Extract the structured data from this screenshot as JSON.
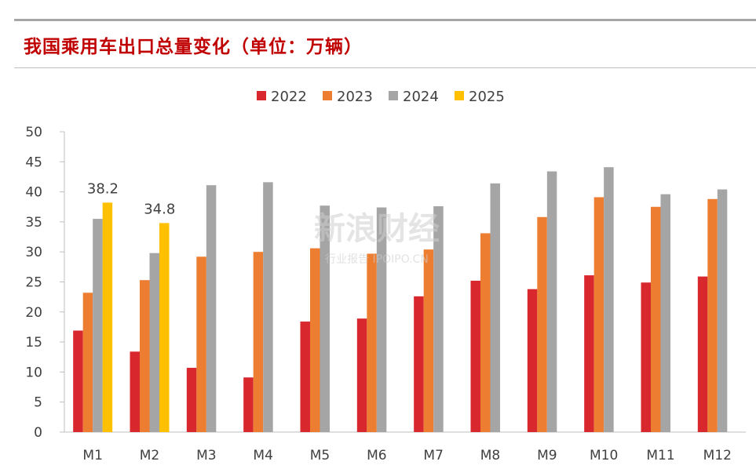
{
  "title": "我国乘用车出口总量变化（单位：万辆）",
  "watermark": {
    "main": "新浪财经",
    "sub": "行业报告 IPOIPO.CN"
  },
  "chart_data": {
    "type": "bar",
    "categories": [
      "M1",
      "M2",
      "M3",
      "M4",
      "M5",
      "M6",
      "M7",
      "M8",
      "M9",
      "M10",
      "M11",
      "M12"
    ],
    "series": [
      {
        "name": "2022",
        "color": "#d9272e",
        "values": [
          16.9,
          13.4,
          10.7,
          9.1,
          18.4,
          18.9,
          22.6,
          25.2,
          23.8,
          26.1,
          24.9,
          25.9
        ]
      },
      {
        "name": "2023",
        "color": "#ed7d31",
        "values": [
          23.2,
          25.3,
          29.2,
          30.0,
          30.6,
          29.7,
          30.4,
          33.1,
          35.8,
          39.1,
          37.5,
          38.8
        ]
      },
      {
        "name": "2024",
        "color": "#a5a5a5",
        "values": [
          35.5,
          29.8,
          41.1,
          41.6,
          37.7,
          37.4,
          37.6,
          41.4,
          43.4,
          44.1,
          39.6,
          40.4
        ]
      },
      {
        "name": "2025",
        "color": "#ffc000",
        "values": [
          38.2,
          34.8,
          null,
          null,
          null,
          null,
          null,
          null,
          null,
          null,
          null,
          null
        ]
      }
    ],
    "data_labels": [
      {
        "series": "2025",
        "category": "M1",
        "text": "38.2"
      },
      {
        "series": "2025",
        "category": "M2",
        "text": "34.8"
      }
    ],
    "ylim": [
      0,
      50
    ],
    "yticks": [
      "0",
      "5",
      "10",
      "15",
      "20",
      "25",
      "30",
      "35",
      "40",
      "45",
      "50"
    ],
    "legend_position": "top-center",
    "grid": false
  }
}
